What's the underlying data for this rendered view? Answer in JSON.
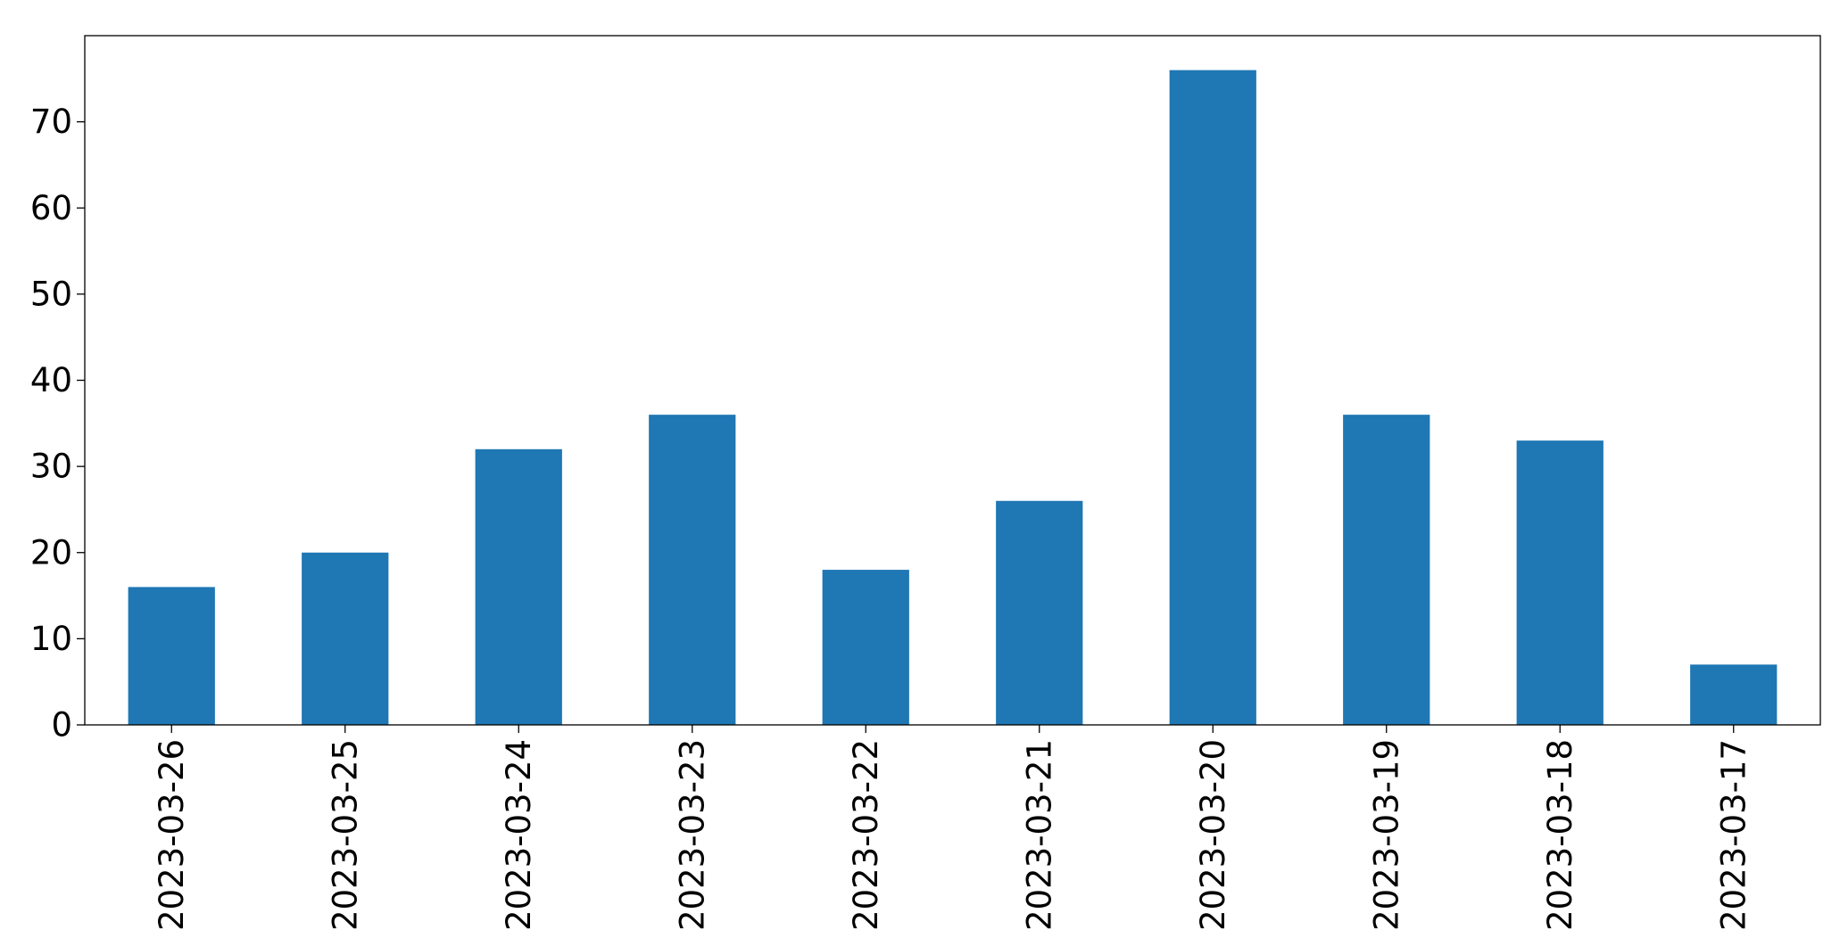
{
  "chart_data": {
    "type": "bar",
    "title": "",
    "xlabel": "",
    "ylabel": "",
    "categories": [
      "2023-03-26",
      "2023-03-25",
      "2023-03-24",
      "2023-03-23",
      "2023-03-22",
      "2023-03-21",
      "2023-03-20",
      "2023-03-19",
      "2023-03-18",
      "2023-03-17"
    ],
    "values": [
      16,
      20,
      32,
      36,
      18,
      26,
      76,
      36,
      33,
      7
    ],
    "ylim": [
      0,
      80
    ],
    "yticks": [
      0,
      10,
      20,
      30,
      40,
      50,
      60,
      70
    ],
    "grid": false,
    "legend": "none",
    "bar_color": "#1f77b4"
  }
}
